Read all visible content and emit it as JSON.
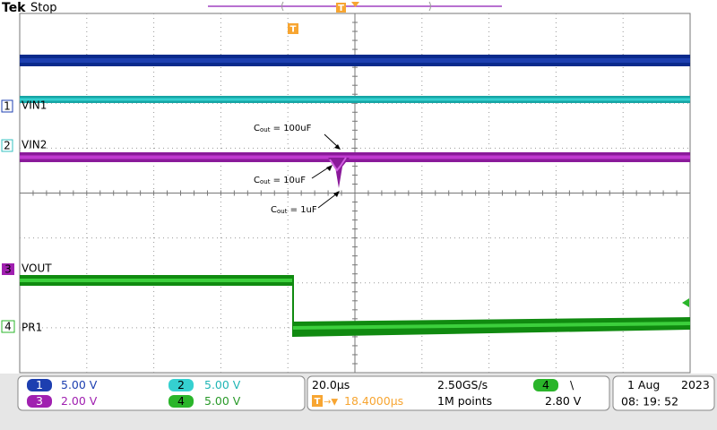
{
  "header": {
    "brand": "Tek",
    "status": "Stop",
    "position_marker": "T",
    "trigger_marker": "T"
  },
  "screen": {
    "channels": [
      {
        "number": "1",
        "label": "VIN1"
      },
      {
        "number": "2",
        "label": "VIN2"
      },
      {
        "number": "3",
        "label": "VOUT"
      },
      {
        "number": "4",
        "label": "PR1"
      }
    ],
    "annotations": [
      {
        "symbol": "C",
        "subscript": "out",
        "value": " = 100uF"
      },
      {
        "symbol": "C",
        "subscript": "out",
        "value": " = 10uF"
      },
      {
        "symbol": "C",
        "subscript": "out",
        "value": " = 1uF"
      }
    ]
  },
  "status_bar": {
    "channels": [
      {
        "number": "1",
        "scale": "5.00 V"
      },
      {
        "number": "2",
        "scale": "5.00 V"
      },
      {
        "number": "3",
        "scale": "2.00 V"
      },
      {
        "number": "4",
        "scale": "5.00 V"
      }
    ],
    "timebase": "20.0µs",
    "sample_rate": "2.50GS/s",
    "record_length": "1M points",
    "trigger_delay_icon": "T",
    "trigger_delay_arrow": "→▼",
    "trigger_delay": "18.4000µs",
    "trigger_source": "4",
    "trigger_slope": "\\",
    "trigger_level": "2.80 V",
    "date_day": "1 Aug",
    "date_year": "2023",
    "time": "08: 19: 52"
  }
}
